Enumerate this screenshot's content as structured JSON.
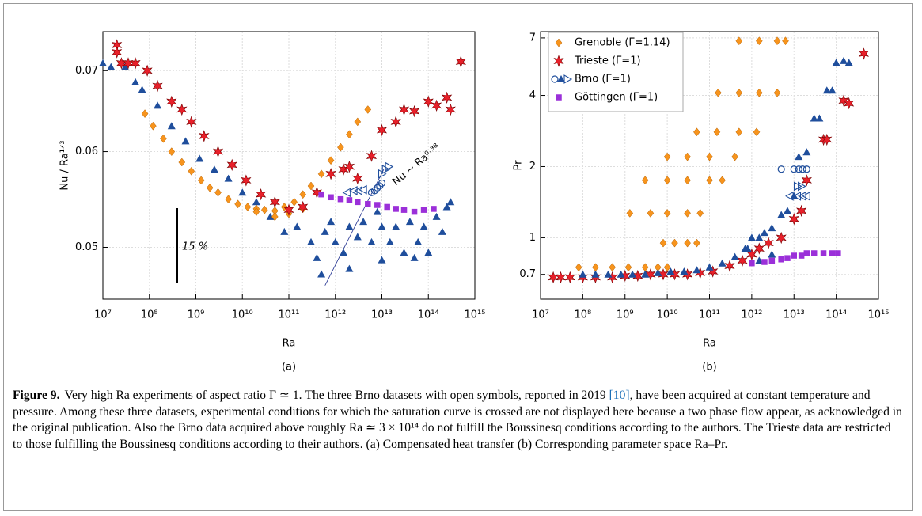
{
  "chart_data": [
    {
      "type": "scatter",
      "panel_label": "(a)",
      "xlabel": "Ra",
      "ylabel": "Nu / Ra¹ᐟ³",
      "xscale": "log",
      "yscale": "log",
      "grid": true,
      "xlim": [
        10000000.0,
        1000000000000000.0
      ],
      "ylim": [
        0.0453,
        0.0754
      ],
      "xticks": [
        {
          "value": 10000000.0,
          "label": "10⁷"
        },
        {
          "value": 100000000.0,
          "label": "10⁸"
        },
        {
          "value": 1000000000.0,
          "label": "10⁹"
        },
        {
          "value": 10000000000.0,
          "label": "10¹⁰"
        },
        {
          "value": 100000000000.0,
          "label": "10¹¹"
        },
        {
          "value": 1000000000000.0,
          "label": "10¹²"
        },
        {
          "value": 10000000000000.0,
          "label": "10¹³"
        },
        {
          "value": 100000000000000.0,
          "label": "10¹⁴"
        },
        {
          "value": 1000000000000000.0,
          "label": "10¹⁵"
        }
      ],
      "yticks": [
        0.05,
        0.06,
        0.07
      ],
      "annotations": [
        {
          "text": "15 %"
        },
        {
          "text": "Nu ~ Ra⁰·³⁸"
        }
      ],
      "fit_line": {
        "x": [
          600000000000.0,
          11000000000000.0
        ],
        "values": [
          0.0465,
          0.058
        ]
      },
      "series": [
        {
          "marker": "triangle",
          "color": "#1f4e9c",
          "x": [
            10000000.0,
            15000000.0,
            30000000.0,
            50000000.0,
            70000000.0,
            150000000.0,
            300000000.0,
            600000000.0,
            1200000000.0,
            2500000000.0,
            5000000000.0,
            10000000000.0,
            20000000000.0,
            40000000000.0,
            80000000000.0,
            150000000000.0,
            300000000000.0,
            400000000000.0,
            600000000000.0,
            800000000000.0,
            1000000000000.0,
            1500000000000.0,
            2000000000000.0,
            3000000000000.0,
            4000000000000.0,
            6000000000000.0,
            8000000000000.0,
            10000000000000.0,
            15000000000000.0,
            20000000000000.0,
            30000000000000.0,
            40000000000000.0,
            60000000000000.0,
            80000000000000.0,
            100000000000000.0,
            150000000000000.0,
            200000000000000.0,
            250000000000000.0,
            300000000000000.0,
            500000000000.0,
            2000000000000.0,
            10000000000000.0,
            50000000000000.0
          ],
          "values": [
            0.071,
            0.0705,
            0.0705,
            0.0685,
            0.0675,
            0.0655,
            0.063,
            0.0612,
            0.0592,
            0.058,
            0.057,
            0.0555,
            0.0545,
            0.053,
            0.0515,
            0.052,
            0.0505,
            0.049,
            0.0515,
            0.0525,
            0.0505,
            0.0495,
            0.052,
            0.051,
            0.0525,
            0.0505,
            0.0535,
            0.052,
            0.0505,
            0.052,
            0.0495,
            0.0525,
            0.0505,
            0.052,
            0.0495,
            0.053,
            0.0515,
            0.054,
            0.0545,
            0.0475,
            0.048,
            0.0488,
            0.049
          ]
        },
        {
          "marker": "diamond",
          "color": "#f7941d",
          "x": [
            80000000.0,
            120000000.0,
            200000000.0,
            300000000.0,
            500000000.0,
            800000000.0,
            1300000000.0,
            2000000000.0,
            3000000000.0,
            5000000000.0,
            8000000000.0,
            13000000000.0,
            20000000000.0,
            30000000000.0,
            50000000000.0,
            80000000000.0,
            130000000000.0,
            200000000000.0,
            300000000000.0,
            500000000000.0,
            800000000000.0,
            1300000000000.0,
            2000000000000.0,
            3000000000000.0,
            5000000000000.0,
            20000000000.0,
            50000000000.0,
            100000000000.0,
            200000000000.0
          ],
          "values": [
            0.0645,
            0.063,
            0.0615,
            0.06,
            0.0588,
            0.0578,
            0.0568,
            0.056,
            0.0555,
            0.0548,
            0.0543,
            0.054,
            0.0538,
            0.0537,
            0.0536,
            0.054,
            0.0545,
            0.0553,
            0.0562,
            0.0575,
            0.059,
            0.0605,
            0.062,
            0.0635,
            0.065,
            0.0535,
            0.053,
            0.0533,
            0.0538
          ]
        },
        {
          "marker": "star",
          "color": "#e8202a",
          "x": [
            20000000.0,
            20000000.0,
            25000000.0,
            35000000.0,
            50000000.0,
            90000000.0,
            150000000.0,
            300000000.0,
            500000000.0,
            800000000.0,
            1500000000.0,
            3000000000.0,
            6000000000.0,
            12000000000.0,
            25000000000.0,
            50000000000.0,
            100000000000.0,
            200000000000.0,
            400000000000.0,
            800000000000.0,
            1500000000000.0,
            2000000000000.0,
            3000000000000.0,
            6000000000000.0,
            10000000000000.0,
            20000000000000.0,
            30000000000000.0,
            50000000000000.0,
            100000000000000.0,
            150000000000000.0,
            250000000000000.0,
            300000000000000.0,
            500000000000000.0
          ],
          "values": [
            0.0735,
            0.0725,
            0.071,
            0.071,
            0.071,
            0.07,
            0.068,
            0.066,
            0.065,
            0.0635,
            0.0618,
            0.06,
            0.0585,
            0.0568,
            0.0553,
            0.0545,
            0.0537,
            0.054,
            0.0555,
            0.0575,
            0.058,
            0.0583,
            0.057,
            0.0595,
            0.0625,
            0.0635,
            0.065,
            0.0648,
            0.066,
            0.0655,
            0.0665,
            0.065,
            0.0712
          ]
        },
        {
          "marker": "open-circle",
          "color": "#1f4e9c",
          "x": [
            6000000000000.0,
            7000000000000.0,
            8000000000000.0,
            9000000000000.0,
            10000000000000.0
          ],
          "values": [
            0.0555,
            0.0557,
            0.056,
            0.0562,
            0.0565
          ]
        },
        {
          "marker": "open-left",
          "color": "#1f4e9c",
          "x": [
            1800000000000.0,
            2500000000000.0,
            3200000000000.0,
            4000000000000.0
          ],
          "values": [
            0.0555,
            0.0557,
            0.0557,
            0.0558
          ]
        },
        {
          "marker": "open-right",
          "color": "#1f4e9c",
          "x": [
            10000000000000.0,
            12000000000000.0,
            14000000000000.0
          ],
          "values": [
            0.0575,
            0.058,
            0.0583
          ]
        },
        {
          "marker": "square",
          "color": "#9b30d9",
          "x": [
            500000000000.0,
            800000000000.0,
            1300000000000.0,
            2000000000000.0,
            3000000000000.0,
            5000000000000.0,
            8000000000000.0,
            13000000000000.0,
            20000000000000.0,
            30000000000000.0,
            50000000000000.0,
            80000000000000.0,
            130000000000000.0
          ],
          "values": [
            0.0553,
            0.055,
            0.0548,
            0.0547,
            0.0545,
            0.0543,
            0.0542,
            0.054,
            0.0538,
            0.0537,
            0.0535,
            0.0537,
            0.0538
          ]
        }
      ]
    },
    {
      "type": "scatter",
      "panel_label": "(b)",
      "xlabel": "Ra",
      "ylabel": "Pr",
      "xscale": "log",
      "yscale": "log",
      "grid": true,
      "legend": "upper left",
      "xlim": [
        10000000.0,
        1000000000000000.0
      ],
      "ylim": [
        0.55,
        7.44
      ],
      "xticks": [
        {
          "value": 10000000.0,
          "label": "10⁷"
        },
        {
          "value": 100000000.0,
          "label": "10⁸"
        },
        {
          "value": 1000000000.0,
          "label": "10⁹"
        },
        {
          "value": 10000000000.0,
          "label": "10¹⁰"
        },
        {
          "value": 100000000000.0,
          "label": "10¹¹"
        },
        {
          "value": 1000000000000.0,
          "label": "10¹²"
        },
        {
          "value": 10000000000000.0,
          "label": "10¹³"
        },
        {
          "value": 100000000000000.0,
          "label": "10¹⁴"
        },
        {
          "value": 1000000000000000.0,
          "label": "10¹⁵"
        }
      ],
      "yticks": [
        0.7,
        1,
        2,
        4,
        7
      ],
      "series": [
        {
          "name": "Grenoble (Γ=1.14)",
          "marker": "diamond",
          "color": "#f7941d",
          "x": [
            80000000.0,
            200000000.0,
            500000000.0,
            1200000000.0,
            3000000000.0,
            6000000000.0,
            10000000000.0,
            8000000000.0,
            15000000000.0,
            30000000000.0,
            50000000000.0,
            1300000000.0,
            4000000000.0,
            10000000000.0,
            30000000000.0,
            60000000000.0,
            3000000000.0,
            10000000000.0,
            30000000000.0,
            100000000000.0,
            200000000000.0,
            10000000000.0,
            30000000000.0,
            100000000000.0,
            400000000000.0,
            50000000000.0,
            150000000000.0,
            500000000000.0,
            1300000000000.0,
            160000000000.0,
            500000000000.0,
            1500000000000.0,
            4000000000000.0,
            500000000000.0,
            1500000000000.0,
            4000000000000.0,
            6300000000000.0
          ],
          "values": [
            0.75,
            0.75,
            0.75,
            0.75,
            0.75,
            0.75,
            0.75,
            0.95,
            0.95,
            0.95,
            0.95,
            1.27,
            1.27,
            1.27,
            1.27,
            1.27,
            1.75,
            1.75,
            1.75,
            1.75,
            1.75,
            2.2,
            2.2,
            2.2,
            2.2,
            2.8,
            2.8,
            2.8,
            2.8,
            4.1,
            4.1,
            4.1,
            4.1,
            6.8,
            6.8,
            6.8,
            6.8
          ]
        },
        {
          "name": "Trieste      (Γ=1)",
          "marker": "star",
          "color": "#e8202a",
          "x": [
            20000000.0,
            30000000.0,
            50000000.0,
            100000000.0,
            200000000.0,
            500000000.0,
            1000000000.0,
            2000000000.0,
            4000000000.0,
            8000000000.0,
            15000000000.0,
            30000000000.0,
            60000000000.0,
            120000000000.0,
            300000000000.0,
            600000000000.0,
            1000000000000.0,
            1500000000000.0,
            2500000000000.0,
            5000000000000.0,
            10000000000000.0,
            15000000000000.0,
            20000000000000.0,
            50000000000000.0,
            60000000000000.0,
            150000000000000.0,
            200000000000000.0,
            450000000000000.0
          ],
          "values": [
            0.68,
            0.68,
            0.68,
            0.68,
            0.68,
            0.68,
            0.69,
            0.69,
            0.7,
            0.7,
            0.7,
            0.7,
            0.71,
            0.72,
            0.76,
            0.8,
            0.85,
            0.9,
            0.95,
            1.0,
            1.2,
            1.3,
            1.75,
            2.6,
            2.6,
            3.8,
            3.7,
            6.0
          ]
        },
        {
          "name": "Brno       (Γ=1)",
          "marker": "open-circle",
          "color": "#1f4e9c",
          "x": [
            5000000000000.0,
            10000000000000.0,
            13000000000000.0,
            16000000000000.0,
            20000000000000.0
          ],
          "values": [
            1.95,
            1.95,
            1.95,
            1.95,
            1.95
          ]
        },
        {
          "marker": "triangle",
          "color": "#1f4e9c",
          "x": [
            100000000.0,
            200000000.0,
            400000000.0,
            800000000.0,
            1500000000.0,
            3000000000.0,
            6000000000.0,
            12000000000.0,
            25000000000.0,
            50000000000.0,
            100000000000.0,
            200000000000.0,
            400000000000.0,
            700000000000.0,
            1000000000000.0,
            1500000000000.0,
            2000000000000.0,
            3000000000000.0,
            5000000000000.0,
            7000000000000.0,
            10000000000000.0,
            13000000000000.0,
            20000000000000.0,
            30000000000000.0,
            40000000000000.0,
            60000000000000.0,
            80000000000000.0,
            100000000000000.0,
            150000000000000.0,
            200000000000000.0,
            1500000000000.0,
            3000000000000.0,
            800000000000.0
          ],
          "values": [
            0.7,
            0.7,
            0.7,
            0.7,
            0.7,
            0.7,
            0.71,
            0.72,
            0.72,
            0.73,
            0.75,
            0.78,
            0.83,
            0.9,
            1.0,
            1.0,
            1.05,
            1.1,
            1.25,
            1.3,
            1.5,
            2.2,
            2.3,
            3.2,
            3.2,
            4.2,
            4.2,
            5.5,
            5.6,
            5.5,
            0.8,
            0.85,
            0.9
          ]
        },
        {
          "marker": "open-right",
          "color": "#1f4e9c",
          "x": [
            12000000000000.0,
            15000000000000.0
          ],
          "values": [
            1.65,
            1.65
          ]
        },
        {
          "marker": "open-left",
          "color": "#1f4e9c",
          "x": [
            8000000000000.0,
            12000000000000.0,
            16000000000000.0,
            20000000000000.0
          ],
          "values": [
            1.5,
            1.5,
            1.5,
            1.5
          ]
        },
        {
          "name": "Göttingen (Γ=1)",
          "marker": "square",
          "color": "#9b30d9",
          "x": [
            1000000000000.0,
            2000000000000.0,
            3000000000000.0,
            5000000000000.0,
            7000000000000.0,
            10000000000000.0,
            15000000000000.0,
            20000000000000.0,
            30000000000000.0,
            50000000000000.0,
            80000000000000.0,
            110000000000000.0
          ],
          "values": [
            0.78,
            0.79,
            0.8,
            0.81,
            0.82,
            0.84,
            0.84,
            0.86,
            0.86,
            0.86,
            0.86,
            0.86
          ]
        }
      ]
    }
  ],
  "caption": {
    "label": "Figure 9.",
    "text": [
      "Very high Ra experiments of aspect ratio Γ ≃ 1. The three Brno datasets with open symbols, reported in 2019 ",
      "[10]",
      ", have been acquired at constant temperature and pressure. Among these three datasets, experimental conditions for which the saturation curve is crossed are not displayed here because a two phase flow appear, as acknowledged in the original publication. Also the Brno data acquired above roughly Ra ≃ 3 × 10¹⁴ do not fulfill the Boussinesq conditions according to the authors. The Trieste data are restricted to those fulfilling the Boussinesq conditions according to their authors. (a) Compensated heat transfer (b) Corresponding parameter space Ra–Pr."
    ]
  }
}
